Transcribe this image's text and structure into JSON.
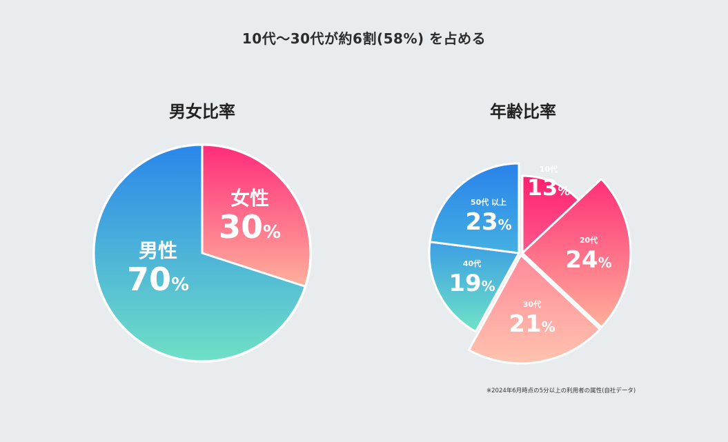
{
  "headline": "10代～30代が約6割(58%) を占める",
  "note": "※2024年6月時点の5分以上の利用者の属性(自社データ)",
  "chart_data": [
    {
      "type": "pie",
      "title": "男女比率",
      "categories": [
        "女性",
        "男性"
      ],
      "values": [
        30,
        70
      ],
      "unit": "%",
      "colors": [
        [
          "#ff2c7a",
          "#ffb09c"
        ],
        [
          "#2a86ea",
          "#6fe0c6"
        ]
      ]
    },
    {
      "type": "pie",
      "title": "年齢比率",
      "categories": [
        "10代",
        "20代",
        "30代",
        "40代",
        "50代 以上"
      ],
      "values": [
        13,
        24,
        21,
        19,
        23
      ],
      "unit": "%",
      "colors": [
        [
          "#ff1f70",
          "#ff5a8c"
        ],
        [
          "#ff2f78",
          "#ffb09a"
        ],
        [
          "#ff8a9a",
          "#ffc3ae"
        ],
        [
          "#3c9ee4",
          "#6fe3c6"
        ],
        [
          "#2a82ea",
          "#44b0e2"
        ]
      ]
    }
  ]
}
